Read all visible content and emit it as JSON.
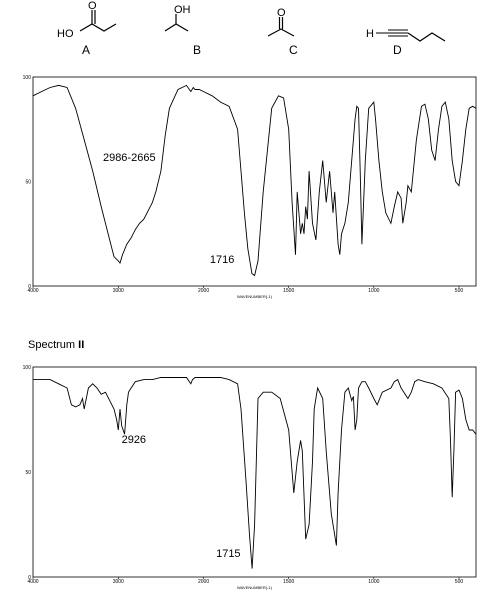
{
  "molecules": [
    {
      "letter": "A",
      "atoms": {
        "ho": "HO",
        "o": "O"
      }
    },
    {
      "letter": "B",
      "atoms": {
        "oh": "OH"
      }
    },
    {
      "letter": "C",
      "atoms": {
        "o": "O"
      }
    },
    {
      "letter": "D",
      "atoms": {
        "h": "H"
      }
    }
  ],
  "spectrum2_title": {
    "text": "Spectrum ",
    "numeral": "II"
  },
  "chart_data": [
    {
      "type": "line",
      "xlabel": "WAVENUMBER(-1)",
      "ylabel": "",
      "xlim": [
        4000,
        400
      ],
      "ylim": [
        0,
        100
      ],
      "x_ticks": [
        4000,
        3000,
        2000,
        1500,
        1000,
        500
      ],
      "y_ticks": [
        0,
        50,
        100
      ],
      "annotations": [
        {
          "text": "2986-2665",
          "x": 3250,
          "y": 60
        },
        {
          "text": "1716",
          "x": 1716,
          "y": 10
        }
      ],
      "series": [
        {
          "x": [
            4000,
            3900,
            3800,
            3700,
            3600,
            3500,
            3400,
            3300,
            3200,
            3100,
            3050,
            3000,
            2980,
            2950,
            2900,
            2850,
            2800,
            2750,
            2700,
            2650,
            2600,
            2560,
            2500,
            2450,
            2400,
            2300,
            2200,
            2150,
            2120,
            2100,
            2050,
            2000,
            1950,
            1900,
            1850,
            1800,
            1780,
            1760,
            1740,
            1716,
            1700,
            1680,
            1650,
            1600,
            1560,
            1530,
            1500,
            1480,
            1460,
            1450,
            1430,
            1420,
            1410,
            1400,
            1390,
            1380,
            1360,
            1340,
            1320,
            1300,
            1290,
            1280,
            1260,
            1240,
            1230,
            1210,
            1200,
            1190,
            1170,
            1150,
            1130,
            1110,
            1100,
            1090,
            1080,
            1070,
            1050,
            1030,
            1000,
            990,
            970,
            950,
            930,
            900,
            880,
            860,
            840,
            830,
            810,
            800,
            780,
            750,
            720,
            700,
            680,
            660,
            640,
            620,
            600,
            580,
            560,
            540,
            520,
            500,
            480,
            460,
            440,
            420,
            400
          ],
          "y": [
            91,
            93,
            95,
            96,
            95,
            85,
            70,
            55,
            38,
            22,
            14,
            12,
            11,
            15,
            20,
            23,
            27,
            30,
            32,
            36,
            40,
            45,
            55,
            72,
            85,
            94,
            96,
            93,
            95,
            94,
            94,
            93,
            91,
            88,
            86,
            75,
            55,
            35,
            18,
            6,
            5,
            12,
            45,
            85,
            91,
            90,
            75,
            40,
            15,
            45,
            25,
            30,
            25,
            38,
            32,
            55,
            30,
            22,
            45,
            60,
            50,
            40,
            55,
            35,
            45,
            20,
            15,
            25,
            30,
            40,
            60,
            80,
            86,
            85,
            55,
            20,
            60,
            85,
            88,
            80,
            60,
            45,
            35,
            30,
            38,
            45,
            42,
            30,
            40,
            48,
            45,
            70,
            86,
            87,
            80,
            65,
            60,
            75,
            86,
            88,
            80,
            60,
            50,
            48,
            60,
            75,
            85,
            86,
            85
          ]
        }
      ]
    },
    {
      "type": "line",
      "xlabel": "WAVENUMBER(-1)",
      "ylabel": "",
      "xlim": [
        4000,
        400
      ],
      "ylim": [
        0,
        100
      ],
      "x_ticks": [
        4000,
        3000,
        2000,
        1500,
        1000,
        500
      ],
      "y_ticks": [
        0,
        50,
        100
      ],
      "annotations": [
        {
          "text": "2926",
          "x": 2926,
          "y": 60
        },
        {
          "text": "1715",
          "x": 1715,
          "y": 8
        }
      ],
      "series": [
        {
          "x": [
            4000,
            3900,
            3800,
            3700,
            3600,
            3550,
            3500,
            3450,
            3420,
            3400,
            3350,
            3300,
            3250,
            3200,
            3150,
            3100,
            3050,
            3020,
            3000,
            2980,
            2960,
            2926,
            2900,
            2880,
            2850,
            2800,
            2700,
            2600,
            2500,
            2400,
            2300,
            2200,
            2150,
            2130,
            2100,
            2000,
            1900,
            1850,
            1800,
            1780,
            1750,
            1730,
            1715,
            1700,
            1680,
            1650,
            1600,
            1550,
            1500,
            1470,
            1450,
            1430,
            1420,
            1400,
            1380,
            1360,
            1350,
            1330,
            1300,
            1280,
            1250,
            1220,
            1210,
            1190,
            1170,
            1150,
            1130,
            1120,
            1110,
            1100,
            1090,
            1070,
            1050,
            1030,
            1000,
            980,
            950,
            900,
            880,
            860,
            840,
            800,
            780,
            760,
            740,
            700,
            650,
            600,
            560,
            550,
            540,
            530,
            520,
            500,
            480,
            460,
            440,
            420,
            400
          ],
          "y": [
            94,
            94,
            94,
            92,
            90,
            82,
            81,
            82,
            85,
            80,
            90,
            92,
            90,
            87,
            88,
            84,
            80,
            75,
            70,
            80,
            72,
            68,
            82,
            88,
            90,
            93,
            94,
            94,
            95,
            95,
            95,
            95,
            92,
            94,
            95,
            95,
            95,
            94,
            92,
            80,
            45,
            20,
            4,
            25,
            85,
            88,
            88,
            85,
            70,
            40,
            55,
            65,
            60,
            18,
            25,
            55,
            80,
            90,
            85,
            60,
            30,
            15,
            40,
            70,
            88,
            90,
            84,
            86,
            70,
            75,
            90,
            93,
            93,
            90,
            85,
            82,
            88,
            90,
            93,
            94,
            90,
            85,
            88,
            93,
            94,
            93,
            92,
            90,
            85,
            65,
            38,
            60,
            88,
            89,
            85,
            75,
            70,
            70,
            68
          ]
        }
      ]
    }
  ]
}
